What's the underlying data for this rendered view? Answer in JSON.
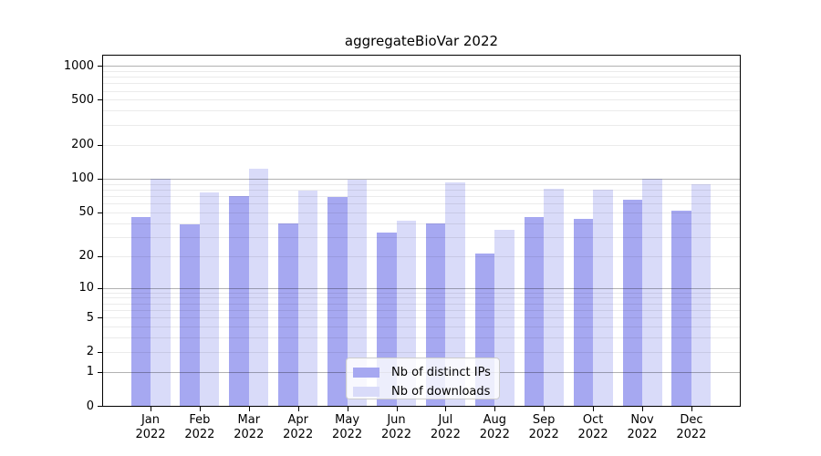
{
  "chart_data": {
    "type": "bar",
    "title": "aggregateBioVar 2022",
    "x_year": "2022",
    "categories": [
      "Jan",
      "Feb",
      "Mar",
      "Apr",
      "May",
      "Jun",
      "Jul",
      "Aug",
      "Sep",
      "Oct",
      "Nov",
      "Dec"
    ],
    "series": [
      {
        "name": "Nb of distinct IPs",
        "color": "#a6a8f1",
        "values": [
          45,
          39,
          70,
          40,
          68,
          33,
          40,
          21,
          45,
          44,
          65,
          52
        ]
      },
      {
        "name": "Nb of downloads",
        "color": "#d9dbf9",
        "values": [
          100,
          76,
          123,
          78,
          98,
          42,
          93,
          35,
          81,
          80,
          100,
          90
        ]
      }
    ],
    "y_ticks": [
      1000,
      500,
      200,
      100,
      50,
      20,
      10,
      5,
      2,
      1,
      0
    ],
    "y_scale": "log1p",
    "ylim": [
      0,
      1227
    ],
    "xlabel": "",
    "ylabel": "",
    "grid": "on",
    "legend_position": "lower-center"
  }
}
